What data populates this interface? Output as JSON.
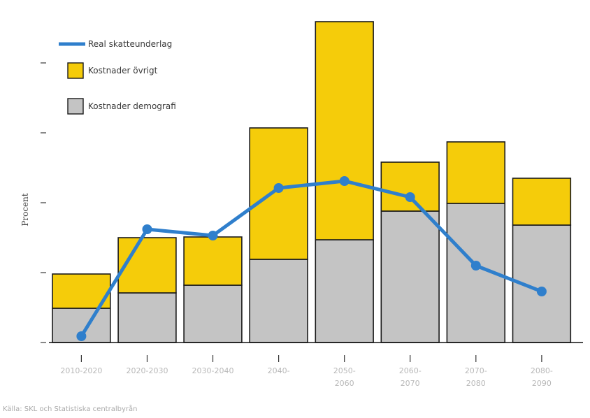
{
  "chart_data": {
    "type": "bar",
    "stacked": true,
    "title": "",
    "xlabel": "",
    "ylabel": "Procent",
    "ylim": [
      0,
      4.6
    ],
    "yticks": [
      0,
      1,
      2,
      3,
      4
    ],
    "categories": [
      {
        "line1": "2010-2020",
        "line2": ""
      },
      {
        "line1": "2020-2030",
        "line2": ""
      },
      {
        "line1": "2030-2040",
        "line2": ""
      },
      {
        "line1": "2040-",
        "line2": ""
      },
      {
        "line1": "2050-",
        "line2": "2060"
      },
      {
        "line1": "2060-",
        "line2": "2070"
      },
      {
        "line1": "2070-",
        "line2": "2080"
      },
      {
        "line1": "2080-",
        "line2": "2090"
      }
    ],
    "series": [
      {
        "name": "Kostnader demografi",
        "kind": "bar",
        "color": "#c4c4c4",
        "values": [
          0.49,
          0.71,
          0.82,
          1.19,
          1.47,
          1.88,
          1.99,
          1.68
        ]
      },
      {
        "name": "Kostnader övrigt",
        "kind": "bar",
        "color": "#f5cc0a",
        "values": [
          0.49,
          0.79,
          0.69,
          1.88,
          3.12,
          0.7,
          0.88,
          0.67
        ]
      },
      {
        "name": "Real skatteunderlag",
        "kind": "line",
        "color": "#2f7fcc",
        "values": [
          0.09,
          1.62,
          1.53,
          2.21,
          2.31,
          2.08,
          1.1,
          0.73
        ]
      }
    ],
    "legend_position": "top-left",
    "grid": false
  },
  "footer": {
    "source": "Källa: SKL och Statistiska centralbyrån"
  }
}
